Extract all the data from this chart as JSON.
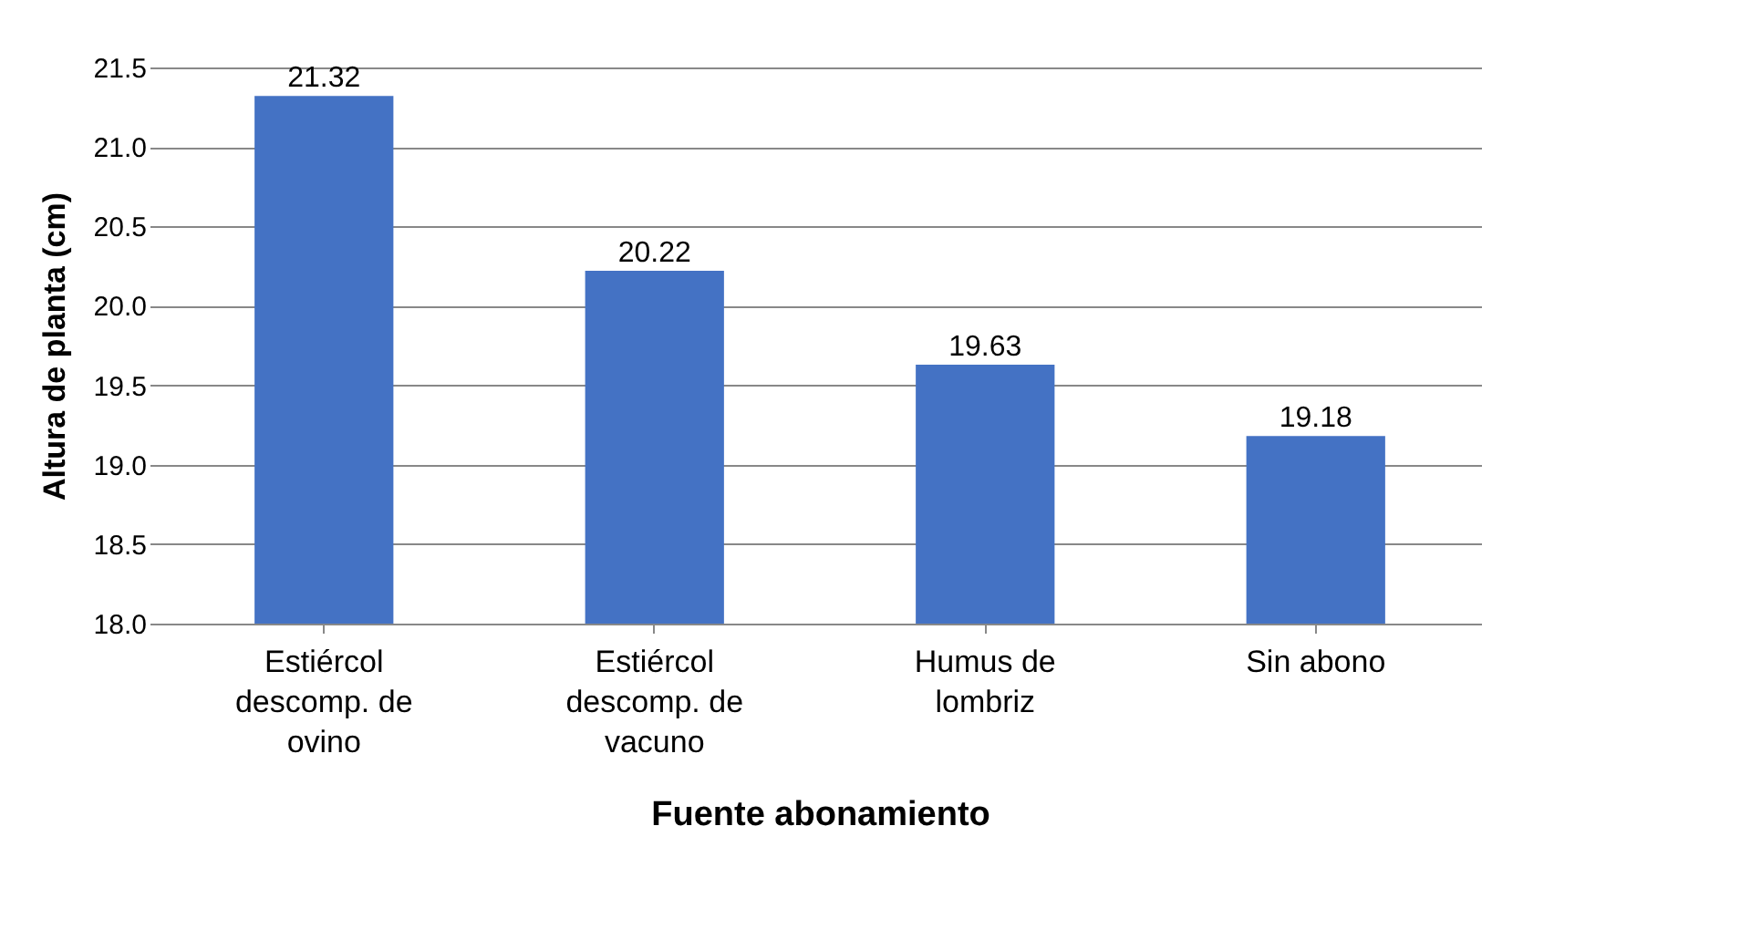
{
  "chart_data": {
    "type": "bar",
    "xlabel": "Fuente abonamiento",
    "ylabel": "Altura de planta (cm)",
    "categories": [
      "Estiércol descomp. de ovino",
      "Estiércol descomp. de vacuno",
      "Humus de lombriz",
      "Sin abono"
    ],
    "values": [
      21.32,
      20.22,
      19.63,
      19.18
    ],
    "color": "#4472c4",
    "ylim": [
      18,
      21.5
    ],
    "yticks": [
      {
        "value": 18,
        "label": "18.0"
      },
      {
        "value": 18.5,
        "label": "18.5"
      },
      {
        "value": 19,
        "label": "19.0"
      },
      {
        "value": 19.5,
        "label": "19.5"
      },
      {
        "value": 20,
        "label": "20.0"
      },
      {
        "value": 20.5,
        "label": "20.5"
      },
      {
        "value": 21,
        "label": "21.0"
      },
      {
        "value": 21.5,
        "label": "21.5"
      }
    ],
    "grid": "y",
    "data_labels": true
  }
}
